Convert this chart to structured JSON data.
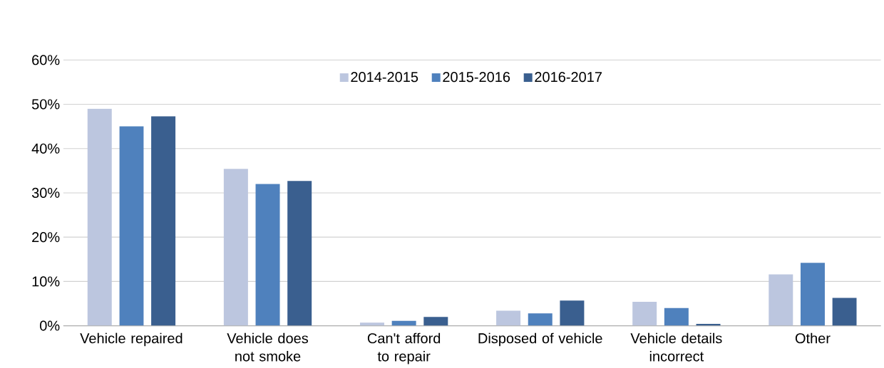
{
  "chart_data": {
    "type": "bar",
    "categories": [
      "Vehicle repaired",
      "Vehicle does not smoke",
      "Can't afford to repair",
      "Disposed of vehicle",
      "Vehicle details incorrect",
      "Other"
    ],
    "series": [
      {
        "name": "2014-2015",
        "color": "#bcc6df",
        "values": [
          49.0,
          35.4,
          0.7,
          3.4,
          5.4,
          11.6
        ]
      },
      {
        "name": "2015-2016",
        "color": "#4f81bd",
        "values": [
          45.0,
          32.0,
          1.1,
          2.8,
          4.0,
          14.2
        ]
      },
      {
        "name": "2016-2017",
        "color": "#3a5f8f",
        "values": [
          47.3,
          32.7,
          2.0,
          5.7,
          0.4,
          6.3
        ]
      }
    ],
    "ylim": [
      0,
      60
    ],
    "yticks": [
      {
        "value": 0,
        "label": "0%"
      },
      {
        "value": 10,
        "label": "10%"
      },
      {
        "value": 20,
        "label": "20%"
      },
      {
        "value": 30,
        "label": "30%"
      },
      {
        "value": 40,
        "label": "40%"
      },
      {
        "value": 50,
        "label": "50%"
      },
      {
        "value": 60,
        "label": "60%"
      }
    ],
    "grid": "y",
    "legend": "top"
  }
}
